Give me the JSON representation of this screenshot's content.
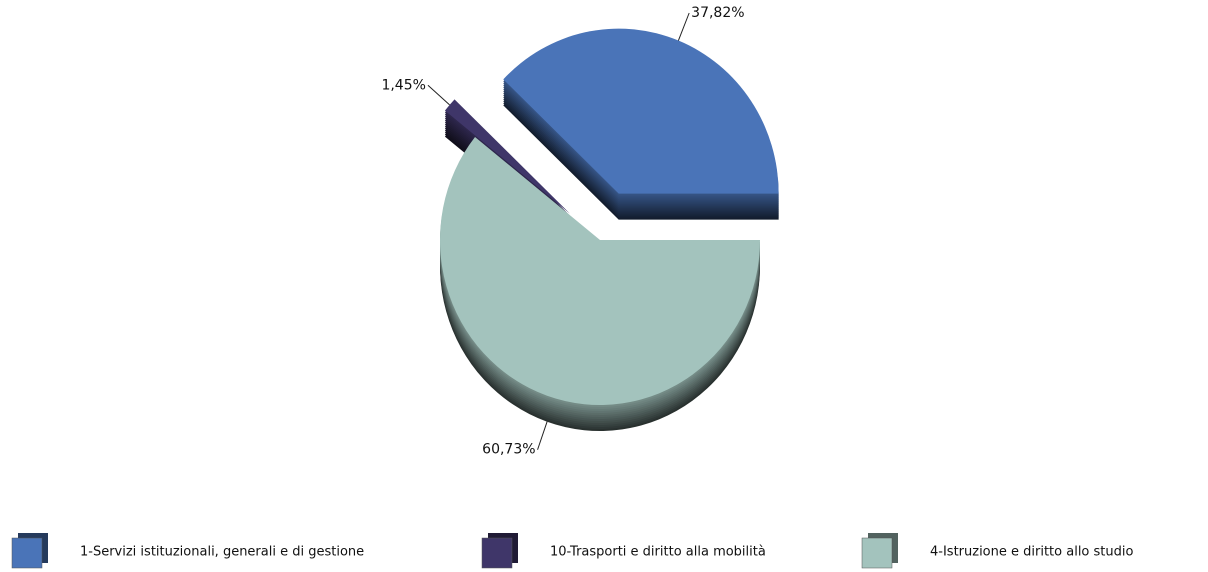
{
  "chart_data": {
    "type": "pie",
    "categories": [
      "1-Servizi istituzionali,  generali e di gestione",
      "10-Trasporti e diritto alla mobilità",
      "4-Istruzione e diritto allo studio"
    ],
    "values": [
      37.82,
      1.45,
      60.73
    ],
    "value_labels": [
      "37,82%",
      "1,45%",
      "60,73%"
    ],
    "colors": [
      "#4a74b8",
      "#3f3669",
      "#a3c3bd"
    ],
    "legend": "bottom"
  }
}
